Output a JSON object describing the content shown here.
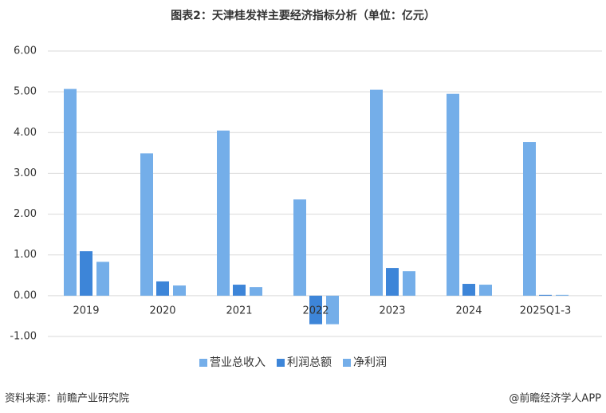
{
  "chart_data": {
    "type": "bar",
    "title": "图表2：天津桂发祥主要经济指标分析（单位：亿元）",
    "categories": [
      "2019",
      "2020",
      "2021",
      "2022",
      "2023",
      "2024",
      "2025Q1-3"
    ],
    "series": [
      {
        "name": "营业总收入",
        "color": "#74aee9",
        "values": [
          5.07,
          3.49,
          4.05,
          2.36,
          5.05,
          4.95,
          3.77
        ]
      },
      {
        "name": "利润总额",
        "color": "#3d85d8",
        "values": [
          1.09,
          0.35,
          0.27,
          -0.7,
          0.68,
          0.29,
          0.02
        ]
      },
      {
        "name": "净利润",
        "color": "#74aee9",
        "values": [
          0.83,
          0.25,
          0.21,
          -0.7,
          0.6,
          0.27,
          0.02
        ]
      }
    ],
    "ylim": [
      -1,
      6
    ],
    "yticks": [
      {
        "value": -1,
        "label": "-1.00"
      },
      {
        "value": 0,
        "label": "0.00"
      },
      {
        "value": 1,
        "label": "1.00"
      },
      {
        "value": 2,
        "label": "2.00"
      },
      {
        "value": 3,
        "label": "3.00"
      },
      {
        "value": 4,
        "label": "4.00"
      },
      {
        "value": 5,
        "label": "5.00"
      },
      {
        "value": 6,
        "label": "6.00"
      }
    ],
    "grid": true,
    "legend": "bottom",
    "source": "资料来源：前瞻产业研究院",
    "credit": "@前瞻经济学人APP"
  }
}
